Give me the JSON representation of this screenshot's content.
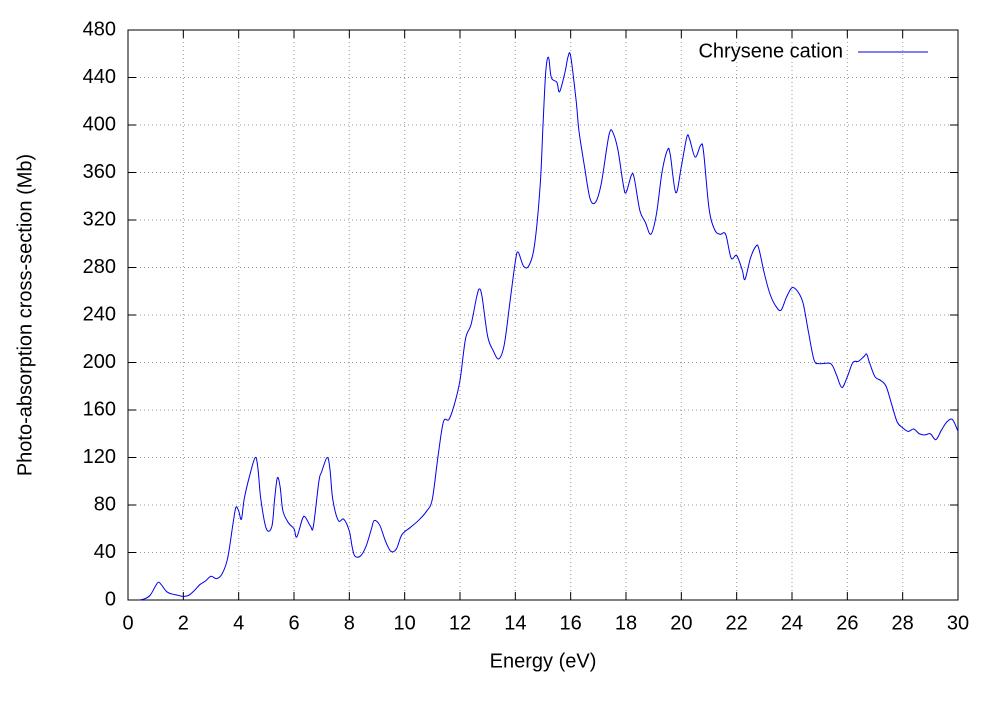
{
  "chart_data": {
    "type": "line",
    "xlabel": "Energy (eV)",
    "ylabel": "Photo-absorption cross-section (Mb)",
    "xlim": [
      0,
      30
    ],
    "ylim": [
      0,
      480
    ],
    "xticks": [
      0,
      2,
      4,
      6,
      8,
      10,
      12,
      14,
      16,
      18,
      20,
      22,
      24,
      26,
      28,
      30
    ],
    "yticks": [
      0,
      40,
      80,
      120,
      160,
      200,
      240,
      280,
      320,
      360,
      400,
      440,
      480
    ],
    "grid": true,
    "legend": "top right",
    "x": [
      0.4,
      0.6,
      0.8,
      1.0,
      1.1,
      1.2,
      1.4,
      1.6,
      1.8,
      2.0,
      2.2,
      2.4,
      2.6,
      2.8,
      3.0,
      3.2,
      3.4,
      3.6,
      3.8,
      3.9,
      4.0,
      4.1,
      4.2,
      4.4,
      4.6,
      4.7,
      4.8,
      5.0,
      5.2,
      5.3,
      5.4,
      5.5,
      5.6,
      5.8,
      6.0,
      6.1,
      6.3,
      6.4,
      6.6,
      6.7,
      6.9,
      7.0,
      7.2,
      7.3,
      7.4,
      7.6,
      7.8,
      8.0,
      8.1,
      8.2,
      8.4,
      8.6,
      8.8,
      8.9,
      9.1,
      9.3,
      9.5,
      9.7,
      9.9,
      10.2,
      10.5,
      10.8,
      11.0,
      11.2,
      11.4,
      11.6,
      11.8,
      12.0,
      12.2,
      12.4,
      12.6,
      12.7,
      12.8,
      13.0,
      13.2,
      13.4,
      13.6,
      13.8,
      14.0,
      14.1,
      14.3,
      14.5,
      14.7,
      14.9,
      15.0,
      15.1,
      15.2,
      15.3,
      15.5,
      15.6,
      15.8,
      15.9,
      16.0,
      16.2,
      16.3,
      16.5,
      16.7,
      16.9,
      17.1,
      17.3,
      17.4,
      17.5,
      17.7,
      17.9,
      18.0,
      18.2,
      18.3,
      18.5,
      18.7,
      18.9,
      19.1,
      19.3,
      19.5,
      19.6,
      19.8,
      20.0,
      20.2,
      20.3,
      20.5,
      20.7,
      20.8,
      21.0,
      21.2,
      21.4,
      21.6,
      21.8,
      22.0,
      22.2,
      22.3,
      22.5,
      22.7,
      22.8,
      23.0,
      23.2,
      23.4,
      23.6,
      23.8,
      24.0,
      24.2,
      24.4,
      24.6,
      24.8,
      25.0,
      25.4,
      25.6,
      25.8,
      26.0,
      26.2,
      26.4,
      26.6,
      26.7,
      26.8,
      27.0,
      27.2,
      27.4,
      27.6,
      27.8,
      28.0,
      28.2,
      28.4,
      28.6,
      28.8,
      29.0,
      29.2,
      29.4,
      29.6,
      29.8,
      30.0
    ],
    "series": [
      {
        "name": "Chrysene cation",
        "color": "#0000ee",
        "values": [
          0,
          1,
          4,
          12,
          15,
          13,
          7,
          5,
          4,
          3,
          4,
          8,
          13,
          16,
          20,
          18,
          22,
          35,
          65,
          78,
          75,
          68,
          85,
          105,
          120,
          110,
          85,
          60,
          62,
          85,
          103,
          95,
          75,
          65,
          60,
          53,
          68,
          70,
          62,
          62,
          100,
          108,
          120,
          110,
          85,
          67,
          68,
          58,
          45,
          37,
          37,
          45,
          60,
          67,
          63,
          50,
          41,
          43,
          55,
          61,
          67,
          75,
          85,
          120,
          150,
          152,
          165,
          185,
          220,
          232,
          255,
          262,
          255,
          222,
          210,
          203,
          215,
          250,
          285,
          293,
          281,
          282,
          300,
          350,
          400,
          445,
          457,
          440,
          436,
          428,
          445,
          457,
          458,
          420,
          395,
          365,
          338,
          335,
          350,
          380,
          393,
          395,
          380,
          350,
          343,
          358,
          355,
          328,
          318,
          308,
          325,
          360,
          379,
          375,
          343,
          365,
          390,
          388,
          373,
          383,
          378,
          330,
          312,
          308,
          308,
          288,
          290,
          278,
          270,
          288,
          298,
          296,
          275,
          258,
          248,
          244,
          255,
          263,
          260,
          250,
          225,
          202,
          199,
          199,
          190,
          179,
          188,
          200,
          201,
          205,
          207,
          200,
          188,
          185,
          180,
          165,
          150,
          145,
          142,
          144,
          140,
          139,
          140,
          135,
          143,
          150,
          152,
          142
        ]
      }
    ]
  }
}
